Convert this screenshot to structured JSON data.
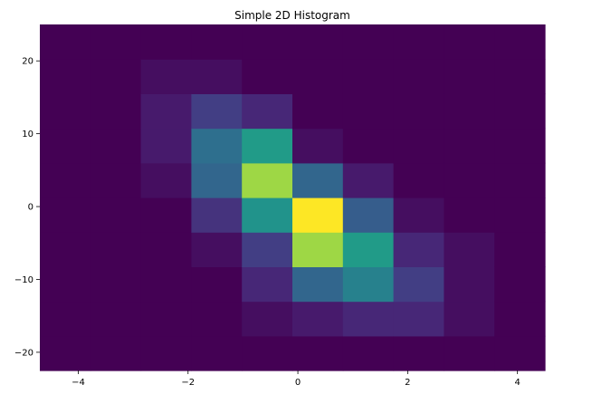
{
  "chart_data": {
    "type": "heatmap",
    "title": "Simple 2D Histogram",
    "xlabel": "",
    "ylabel": "",
    "xlim": [
      -4.7,
      4.5
    ],
    "ylim": [
      -22.5,
      25
    ],
    "x_ticks": [
      -4,
      -2,
      0,
      2,
      4
    ],
    "y_ticks": [
      -20,
      -10,
      0,
      10,
      20
    ],
    "x_edges": [
      -4.7,
      -3.78,
      -2.86,
      -1.94,
      -1.02,
      -0.1,
      0.82,
      1.74,
      2.66,
      3.58,
      4.5
    ],
    "y_edges": [
      -22.5,
      -17.75,
      -13.0,
      -8.25,
      -3.5,
      1.25,
      6.0,
      10.75,
      15.5,
      20.25,
      25.0
    ],
    "colormap": "viridis",
    "counts": [
      [
        0,
        0,
        0,
        0,
        0,
        0,
        0,
        0,
        0,
        0
      ],
      [
        0,
        0,
        0,
        0,
        0,
        0,
        0,
        0,
        0,
        0
      ],
      [
        0,
        0,
        0,
        0,
        0,
        1,
        2,
        2,
        1,
        0
      ],
      [
        0,
        0,
        0,
        1,
        4,
        9,
        10,
        5,
        1,
        0
      ],
      [
        0,
        1,
        3,
        5,
        14,
        20,
        15,
        3,
        0,
        0
      ],
      [
        0,
        2,
        9,
        20,
        22,
        9,
        1,
        0,
        0,
        0
      ],
      [
        0,
        3,
        12,
        15,
        8,
        2,
        0,
        0,
        0,
        0
      ],
      [
        0,
        3,
        5,
        3,
        1,
        0,
        0,
        0,
        0,
        0
      ],
      [
        0,
        1,
        1,
        1,
        0,
        0,
        0,
        0,
        0,
        0
      ],
      [
        0,
        0,
        0,
        0,
        0,
        0,
        0,
        0,
        0,
        0
      ]
    ]
  }
}
